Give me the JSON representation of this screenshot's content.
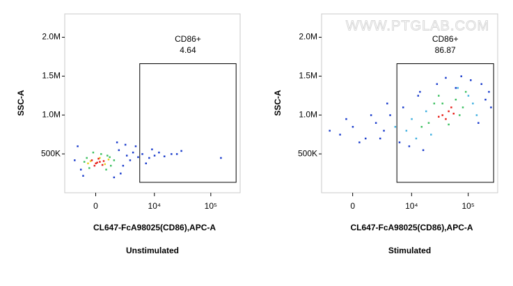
{
  "watermark": "WWW.PTGLAB.COM",
  "chart_data": [
    {
      "type": "scatter",
      "title": "Unstimulated",
      "xlabel": "CL647-FcA98025(CD86),APC-A",
      "ylabel": "SSC-A",
      "xscale": "biex",
      "xlim": [
        -3000,
        330000
      ],
      "ylim": [
        0,
        2300000
      ],
      "xticks": [
        0,
        {
          "value": 10000,
          "label": "10⁴"
        },
        {
          "value": 100000,
          "label": "10⁵"
        }
      ],
      "yticks": [
        {
          "value": 500000,
          "label": "500K"
        },
        {
          "value": 1000000,
          "label": "1.0M"
        },
        {
          "value": 1500000,
          "label": "1.5M"
        },
        {
          "value": 2000000,
          "label": "2.0M"
        }
      ],
      "gate": {
        "name": "CD86+",
        "value": 4.64,
        "x": [
          5400,
          280000
        ],
        "y": [
          134000,
          1660000
        ]
      },
      "populations": [
        {
          "color": "#1a3ccc",
          "x": [
            -1500,
            -1200,
            2000,
            2500,
            3000,
            3500,
            4000,
            5000,
            6000,
            8000,
            10000,
            12000,
            15000,
            20000,
            -1800,
            1800,
            2200,
            2800,
            7000,
            9000,
            25000,
            30000,
            150000,
            4500,
            -1000,
            1500
          ],
          "y": [
            600000,
            300000,
            550000,
            350000,
            480000,
            420000,
            520000,
            460000,
            500000,
            450000,
            480000,
            520000,
            470000,
            500000,
            420000,
            650000,
            250000,
            620000,
            380000,
            560000,
            500000,
            540000,
            450000,
            600000,
            220000,
            200000
          ]
        },
        {
          "color": "#3cc060",
          "x": [
            -700,
            900,
            1200,
            -500,
            400,
            1500,
            800,
            -200,
            1100,
            -900
          ],
          "y": [
            450000,
            480000,
            350000,
            320000,
            500000,
            420000,
            300000,
            520000,
            460000,
            400000
          ]
        },
        {
          "color": "#e8d020",
          "x": [
            -400,
            700,
            300,
            -600,
            1000
          ],
          "y": [
            410000,
            370000,
            450000,
            380000,
            430000
          ]
        },
        {
          "color": "#e8201a",
          "x": [
            0,
            300,
            -300,
            500,
            200,
            -100,
            600,
            100
          ],
          "y": [
            380000,
            400000,
            420000,
            360000,
            440000,
            350000,
            410000,
            390000
          ]
        }
      ]
    },
    {
      "type": "scatter",
      "title": "Stimulated",
      "xlabel": "CL647-FcA98025(CD86),APC-A",
      "ylabel": "SSC-A",
      "xscale": "biex",
      "xlim": [
        -3000,
        330000
      ],
      "ylim": [
        0,
        2300000
      ],
      "xticks": [
        0,
        {
          "value": 10000,
          "label": "10⁴"
        },
        {
          "value": 100000,
          "label": "10⁵"
        }
      ],
      "yticks": [
        {
          "value": 500000,
          "label": "500K"
        },
        {
          "value": 1000000,
          "label": "1.0M"
        },
        {
          "value": 1500000,
          "label": "1.5M"
        },
        {
          "value": 2000000,
          "label": "2.0M"
        }
      ],
      "gate": {
        "name": "CD86+",
        "value": 86.87,
        "x": [
          5400,
          280000
        ],
        "y": [
          134000,
          1660000
        ]
      },
      "populations": [
        {
          "color": "#1a3ccc",
          "x": [
            -1000,
            0,
            1000,
            2000,
            3000,
            4000,
            -2000,
            6000,
            7000,
            9000,
            14000,
            16000,
            200000,
            250000,
            170000,
            110000,
            75000,
            28000,
            3500,
            1500,
            -500,
            500,
            150000,
            230000,
            40000,
            60000,
            13000,
            2500
          ],
          "y": [
            750000,
            850000,
            700000,
            900000,
            800000,
            1000000,
            800000,
            650000,
            1100000,
            600000,
            1300000,
            550000,
            1200000,
            1100000,
            1400000,
            1450000,
            1500000,
            1400000,
            1150000,
            1000000,
            950000,
            650000,
            900000,
            1300000,
            1480000,
            1350000,
            1250000,
            700000
          ]
        },
        {
          "color": "#40b0e0",
          "x": [
            8000,
            10000,
            12000,
            100000,
            120000,
            18000,
            5000,
            65000,
            22000,
            140000
          ],
          "y": [
            800000,
            950000,
            700000,
            1250000,
            1150000,
            1050000,
            850000,
            1350000,
            750000,
            1000000
          ]
        },
        {
          "color": "#3cc060",
          "x": [
            20000,
            25000,
            60000,
            70000,
            15000,
            80000,
            30000,
            45000,
            35000,
            90000
          ],
          "y": [
            900000,
            1150000,
            1200000,
            1000000,
            850000,
            1100000,
            1250000,
            880000,
            1150000,
            1300000
          ]
        },
        {
          "color": "#e8201a",
          "x": [
            35000,
            45000,
            40000,
            50000,
            30000,
            55000
          ],
          "y": [
            1000000,
            1050000,
            950000,
            1100000,
            980000,
            1020000
          ]
        }
      ]
    }
  ]
}
